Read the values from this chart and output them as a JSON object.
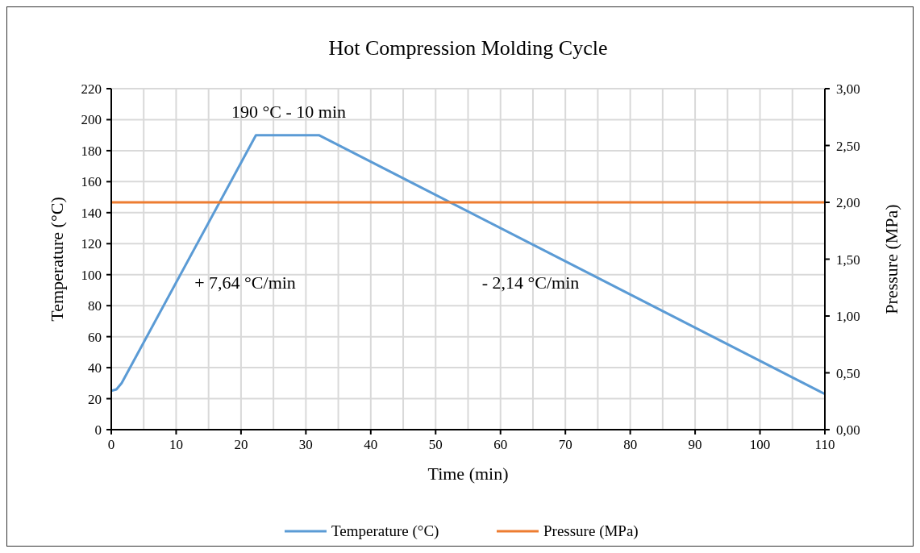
{
  "chart_data": {
    "type": "line",
    "title": "Hot Compression Molding Cycle",
    "xlabel": "Time (min)",
    "ylabel": "Temperature (°C)",
    "y2label": "Pressure (MPa)",
    "annotations": [
      "190 °C - 10 min",
      "+ 7,64 °C/min",
      "- 2,14 °C/min"
    ],
    "series": [
      {
        "name": "Temperature (°C)",
        "color": "#5b9bd5",
        "x": [
          0,
          0.8,
          1.6,
          22.3,
          32,
          110
        ],
        "values": [
          25,
          26,
          30,
          190,
          190,
          23
        ]
      },
      {
        "name": "Pressure (MPa)",
        "color": "#ed7d31",
        "axis": "y2",
        "x": [
          0,
          110
        ],
        "values": [
          2,
          2
        ]
      }
    ],
    "xlim": [
      0,
      110
    ],
    "xticks": [
      0,
      {
        "value": 5,
        "label": null
      },
      10,
      {
        "value": 15,
        "label": null
      },
      20,
      {
        "value": 25,
        "label": null
      },
      30,
      {
        "value": 35,
        "label": null
      },
      40,
      {
        "value": 45,
        "label": null
      },
      50,
      {
        "value": 55,
        "label": null
      },
      60,
      {
        "value": 65,
        "label": null
      },
      70,
      {
        "value": 75,
        "label": null
      },
      80,
      {
        "value": 85,
        "label": null
      },
      90,
      {
        "value": 95,
        "label": null
      },
      100,
      {
        "value": 105,
        "label": null
      },
      110
    ],
    "ylim": [
      0,
      220
    ],
    "yticks": [
      0,
      20,
      40,
      60,
      80,
      100,
      120,
      140,
      160,
      180,
      200,
      220
    ],
    "y2lim": [
      0,
      3
    ],
    "y2ticks": [
      {
        "value": 0,
        "label": "0,00"
      },
      {
        "value": 0.5,
        "label": "0,50"
      },
      {
        "value": 1,
        "label": "1,00"
      },
      {
        "value": 1.5,
        "label": "1,50"
      },
      {
        "value": 2,
        "label": "2,00"
      },
      {
        "value": 2.5,
        "label": "2,50"
      },
      {
        "value": 3,
        "label": "3,00"
      }
    ],
    "grid": true,
    "legend": "bottom",
    "marker": "none",
    "line_style": "solid"
  }
}
